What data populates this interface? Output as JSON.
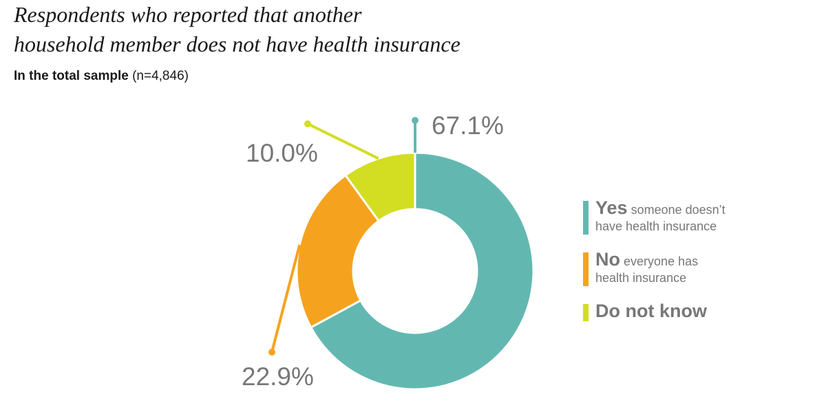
{
  "chart_data": {
    "type": "pie",
    "variant": "donut",
    "title_lines": [
      "Respondents who reported that another",
      "household member does not have health insurance"
    ],
    "subtitle": "In the total sample",
    "subtitle_n": "(n=4,846)",
    "slices": [
      {
        "key": "yes",
        "value": 67.1,
        "label": "67.1%",
        "legend_main": "Yes",
        "legend_desc_1": "someone doesn’t",
        "legend_desc_2": "have health insurance",
        "color": "#62B8B1"
      },
      {
        "key": "no",
        "value": 22.9,
        "label": "22.9%",
        "legend_main": "No",
        "legend_desc_1": "everyone has",
        "legend_desc_2": "health insurance",
        "color": "#F5A31F"
      },
      {
        "key": "dk",
        "value": 10.0,
        "label": "10.0%",
        "legend_main": "Do not know",
        "legend_desc_1": "",
        "legend_desc_2": "",
        "color": "#D3DD22"
      }
    ]
  }
}
